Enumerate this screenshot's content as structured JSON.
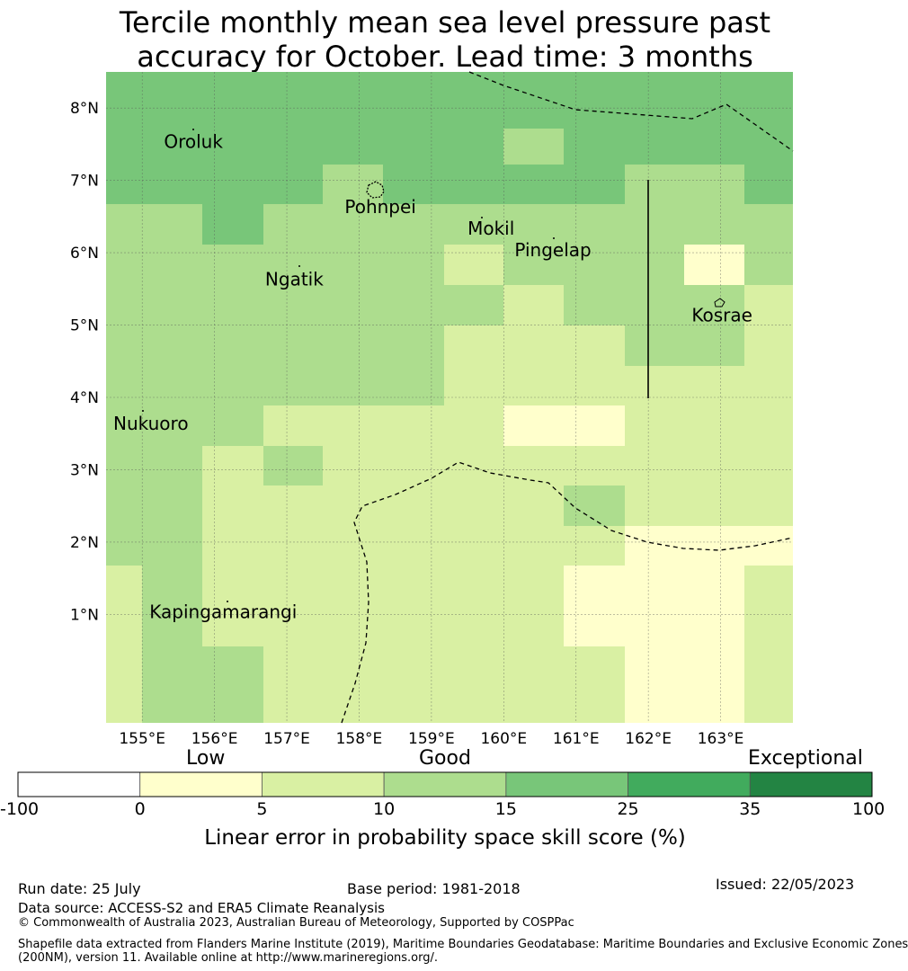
{
  "title_line1": "Tercile monthly mean sea level pressure past",
  "title_line2": "accuracy for October. Lead time: 3 months",
  "map": {
    "lon_range": [
      154.5,
      164.0
    ],
    "lat_range": [
      -0.5,
      8.5
    ],
    "lon_ticks": [
      "155°E",
      "156°E",
      "157°E",
      "158°E",
      "159°E",
      "160°E",
      "161°E",
      "162°E",
      "163°E"
    ],
    "lat_ticks": [
      "1°N",
      "2°N",
      "3°N",
      "4°N",
      "5°N",
      "6°N",
      "7°N",
      "8°N"
    ],
    "places": [
      {
        "name": "Oroluk",
        "lon": 155.3,
        "lat": 7.55
      },
      {
        "name": "Pohnpei",
        "lon": 157.8,
        "lat": 6.65
      },
      {
        "name": "Mokil",
        "lon": 159.5,
        "lat": 6.35
      },
      {
        "name": "Pingelap",
        "lon": 160.15,
        "lat": 6.05
      },
      {
        "name": "Ngatik",
        "lon": 156.7,
        "lat": 5.65
      },
      {
        "name": "Kosrae",
        "lon": 162.6,
        "lat": 5.15
      },
      {
        "name": "Nukuoro",
        "lon": 154.6,
        "lat": 3.65
      },
      {
        "name": "Kapingamarangi",
        "lon": 155.1,
        "lat": 1.05
      }
    ],
    "grid": {
      "lon_edges": [
        154.5,
        155.0,
        155.83,
        156.67,
        157.5,
        158.33,
        159.17,
        160.0,
        160.83,
        161.67,
        162.5,
        163.33,
        164.0
      ],
      "lat_edges_desc": [
        8.5,
        7.72,
        7.22,
        6.67,
        6.11,
        5.56,
        5.0,
        4.44,
        3.89,
        3.33,
        2.78,
        2.22,
        1.67,
        1.11,
        0.56,
        -0.5
      ],
      "values": [
        [
          20,
          20,
          20,
          20,
          20,
          20,
          20,
          20,
          20,
          20,
          20,
          20
        ],
        [
          20,
          20,
          20,
          20,
          20,
          20,
          20,
          12,
          20,
          20,
          20,
          20
        ],
        [
          20,
          20,
          20,
          20,
          12,
          20,
          20,
          20,
          20,
          12,
          12,
          20
        ],
        [
          12,
          12,
          20,
          12,
          12,
          12,
          12,
          12,
          12,
          12,
          12,
          12
        ],
        [
          12,
          12,
          12,
          12,
          12,
          12,
          7,
          12,
          12,
          12,
          3,
          12
        ],
        [
          12,
          12,
          12,
          12,
          12,
          12,
          12,
          7,
          12,
          12,
          12,
          7
        ],
        [
          12,
          12,
          12,
          12,
          12,
          12,
          7,
          7,
          7,
          12,
          12,
          7
        ],
        [
          12,
          12,
          12,
          12,
          12,
          12,
          7,
          7,
          7,
          7,
          7,
          7
        ],
        [
          12,
          12,
          12,
          7,
          7,
          7,
          7,
          3,
          3,
          7,
          7,
          7
        ],
        [
          12,
          12,
          7,
          12,
          7,
          7,
          7,
          7,
          7,
          7,
          7,
          7
        ],
        [
          12,
          12,
          7,
          7,
          7,
          7,
          7,
          7,
          12,
          7,
          7,
          7
        ],
        [
          12,
          12,
          7,
          7,
          7,
          7,
          7,
          7,
          7,
          3,
          3,
          3
        ],
        [
          7,
          12,
          7,
          7,
          7,
          7,
          7,
          7,
          3,
          3,
          3,
          7
        ],
        [
          7,
          12,
          7,
          7,
          7,
          7,
          7,
          7,
          3,
          3,
          3,
          7
        ],
        [
          7,
          12,
          12,
          7,
          7,
          7,
          7,
          7,
          7,
          3,
          3,
          7
        ]
      ]
    }
  },
  "colorbar": {
    "category_labels": {
      "low": "Low",
      "good": "Good",
      "exceptional": "Exceptional"
    },
    "ticks": [
      "-100",
      "0",
      "5",
      "10",
      "15",
      "25",
      "35",
      "100"
    ],
    "colors": [
      "#ffffff",
      "#ffffcc",
      "#d9f0a3",
      "#addd8e",
      "#78c679",
      "#41ab5d",
      "#238443"
    ],
    "title": "Linear error in probability space skill score (%)"
  },
  "footer": {
    "run_date": "Run date: 25 July",
    "base_period": "Base period: 1981-2018",
    "issued": "Issued: 22/05/2023",
    "data_source": "Data source: ACCESS-S2 and ERA5 Climate Reanalysis",
    "copyright": "© Commonwealth of Australia 2023, Australian Bureau of Meteorology, Supported by COSPPac",
    "shapefile_line1": "Shapefile data extracted from Flanders Marine Institute (2019), Maritime Boundaries Geodatabase: Maritime Boundaries and Exclusive Economic Zones",
    "shapefile_line2": "(200NM), version 11. Available online at http://www.marineregions.org/."
  }
}
